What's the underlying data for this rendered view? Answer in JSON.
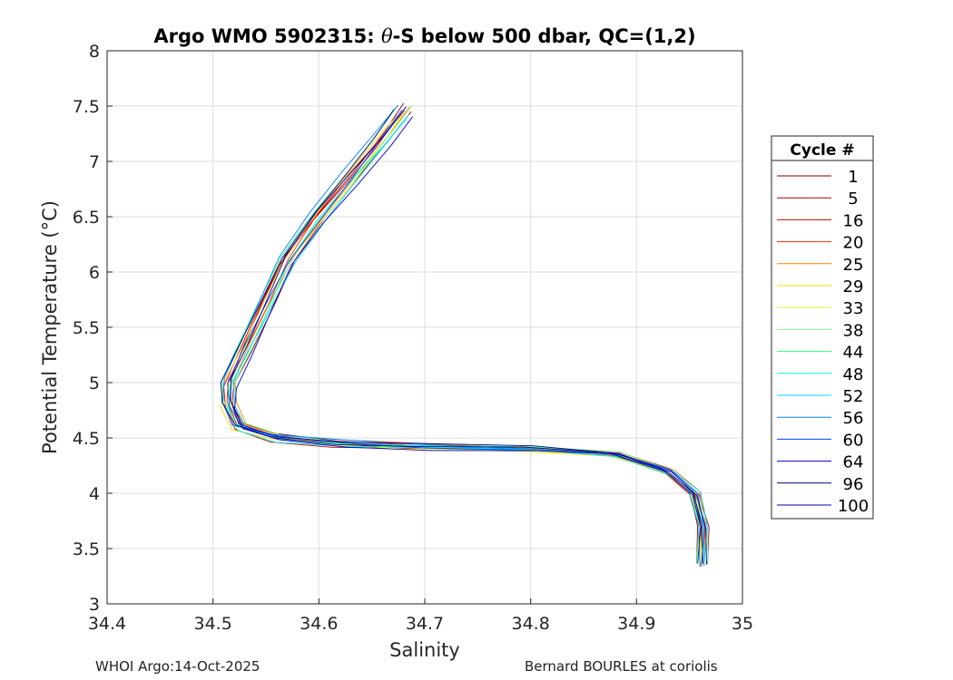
{
  "chart_data": {
    "type": "line",
    "title": "Argo WMO 5902315: θ-S below 500 dbar,  QC=(1,2)",
    "title_prefix": "Argo WMO 5902315: ",
    "title_theta": "θ",
    "title_suffix": "-S below 500 dbar,  QC=(1,2)",
    "xlabel": "Salinity",
    "ylabel": "Potential Temperature (°C)",
    "xlim": [
      34.4,
      35
    ],
    "ylim": [
      3,
      8
    ],
    "xticks": [
      34.4,
      34.5,
      34.6,
      34.7,
      34.8,
      34.9,
      35
    ],
    "xtick_labels": [
      "34.4",
      "34.5",
      "34.6",
      "34.7",
      "34.8",
      "34.9",
      "35"
    ],
    "yticks": [
      3,
      3.5,
      4,
      4.5,
      5,
      5.5,
      6,
      6.5,
      7,
      7.5,
      8
    ],
    "ytick_labels": [
      "3",
      "3.5",
      "4",
      "4.5",
      "5",
      "5.5",
      "6",
      "6.5",
      "7",
      "7.5",
      "8"
    ],
    "grid": true,
    "legend_title": "Cycle #",
    "legend_position": "right",
    "base_profile": {
      "salinity": [
        34.68,
        34.66,
        34.63,
        34.6,
        34.57,
        34.55,
        34.53,
        34.515,
        34.515,
        34.525,
        34.56,
        34.62,
        34.7,
        34.8,
        34.88,
        34.93,
        34.955,
        34.963,
        34.962
      ],
      "temperature": [
        7.45,
        7.2,
        6.85,
        6.5,
        6.1,
        5.7,
        5.3,
        5.0,
        4.8,
        4.6,
        4.5,
        4.45,
        4.42,
        4.4,
        4.35,
        4.2,
        4.0,
        3.7,
        3.35
      ]
    },
    "series": [
      {
        "name": "1",
        "color": "#800000"
      },
      {
        "name": "5",
        "color": "#aa0000"
      },
      {
        "name": "16",
        "color": "#d40000"
      },
      {
        "name": "20",
        "color": "#ff2a00"
      },
      {
        "name": "25",
        "color": "#ff8000"
      },
      {
        "name": "29",
        "color": "#ffd400"
      },
      {
        "name": "33",
        "color": "#d4ff2a"
      },
      {
        "name": "38",
        "color": "#80ff80"
      },
      {
        "name": "44",
        "color": "#2aff80"
      },
      {
        "name": "48",
        "color": "#00ffd4"
      },
      {
        "name": "52",
        "color": "#00d4ff"
      },
      {
        "name": "56",
        "color": "#0080ff"
      },
      {
        "name": "60",
        "color": "#0040ff"
      },
      {
        "name": "64",
        "color": "#0000d4"
      },
      {
        "name": "96",
        "color": "#000080"
      },
      {
        "name": "100",
        "color": "#0000aa"
      }
    ]
  },
  "footer": {
    "left": "WHOI Argo:14-Oct-2025",
    "right": "Bernard BOURLES at coriolis"
  }
}
